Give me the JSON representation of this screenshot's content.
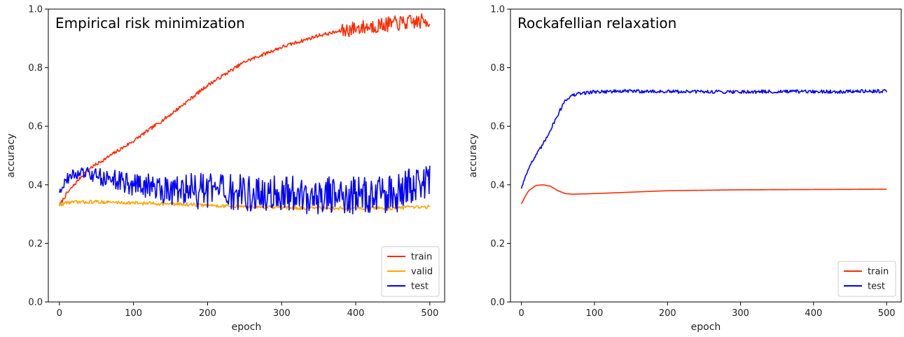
{
  "chart_data": [
    {
      "type": "line",
      "title": "Empirical risk minimization",
      "xlabel": "epoch",
      "ylabel": "accuracy",
      "xlim": [
        -15,
        520
      ],
      "ylim": [
        0.0,
        1.0
      ],
      "xticks": [
        "0",
        "100",
        "200",
        "300",
        "400",
        "500"
      ],
      "yticks": [
        "0.0",
        "0.2",
        "0.4",
        "0.6",
        "0.8",
        "1.0"
      ],
      "legend_position": "bottom-right",
      "grid": false,
      "series": [
        {
          "name": "train",
          "color": "#ff2a00",
          "noise": 0.006,
          "noise_tail": 0.02,
          "x": [
            0,
            10,
            20,
            30,
            40,
            50,
            75,
            100,
            150,
            200,
            250,
            300,
            350,
            400,
            450,
            500
          ],
          "y": [
            0.33,
            0.37,
            0.4,
            0.43,
            0.455,
            0.47,
            0.51,
            0.55,
            0.64,
            0.74,
            0.82,
            0.87,
            0.91,
            0.935,
            0.95,
            0.96
          ]
        },
        {
          "name": "valid",
          "color": "#ffa500",
          "noise": 0.006,
          "x": [
            0,
            10,
            50,
            100,
            150,
            200,
            250,
            300,
            350,
            400,
            450,
            500
          ],
          "y": [
            0.33,
            0.34,
            0.342,
            0.338,
            0.335,
            0.33,
            0.325,
            0.322,
            0.32,
            0.32,
            0.32,
            0.325
          ]
        },
        {
          "name": "test",
          "color": "#0000ff",
          "noise": 0.015,
          "noise_growth": 0.05,
          "x": [
            0,
            10,
            20,
            30,
            40,
            60,
            80,
            100,
            150,
            200,
            250,
            300,
            350,
            400,
            450,
            500
          ],
          "y": [
            0.38,
            0.42,
            0.435,
            0.44,
            0.435,
            0.425,
            0.415,
            0.4,
            0.385,
            0.375,
            0.37,
            0.365,
            0.365,
            0.365,
            0.365,
            0.42
          ]
        }
      ]
    },
    {
      "type": "line",
      "title": "Rockafellian relaxation",
      "xlabel": "epoch",
      "ylabel": "accuracy",
      "xlim": [
        -15,
        520
      ],
      "ylim": [
        0.0,
        1.0
      ],
      "xticks": [
        "0",
        "100",
        "200",
        "300",
        "400",
        "500"
      ],
      "yticks": [
        "0.0",
        "0.2",
        "0.4",
        "0.6",
        "0.8",
        "1.0"
      ],
      "legend_position": "bottom-right",
      "grid": false,
      "series": [
        {
          "name": "train",
          "color": "#ff2a00",
          "noise": 0.0,
          "x": [
            0,
            5,
            10,
            20,
            30,
            40,
            50,
            60,
            70,
            100,
            150,
            200,
            300,
            400,
            500
          ],
          "y": [
            0.335,
            0.36,
            0.38,
            0.398,
            0.4,
            0.395,
            0.38,
            0.37,
            0.368,
            0.37,
            0.375,
            0.38,
            0.383,
            0.384,
            0.385
          ]
        },
        {
          "name": "test",
          "color": "#0000ff",
          "noise": 0.006,
          "x": [
            0,
            10,
            20,
            30,
            40,
            50,
            60,
            70,
            80,
            100,
            150,
            200,
            300,
            400,
            500
          ],
          "y": [
            0.39,
            0.46,
            0.5,
            0.54,
            0.59,
            0.64,
            0.69,
            0.705,
            0.712,
            0.718,
            0.72,
            0.718,
            0.718,
            0.718,
            0.72
          ]
        }
      ]
    }
  ]
}
